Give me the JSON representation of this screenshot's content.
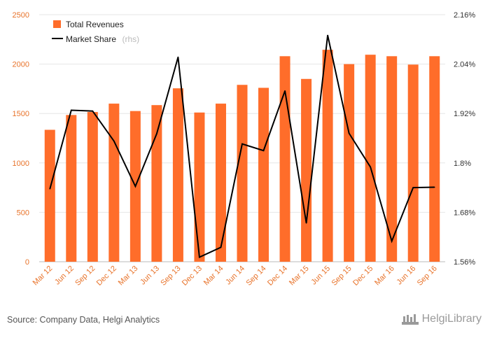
{
  "chart_data": {
    "type": "bar",
    "categories": [
      "Mar 12",
      "Jun 12",
      "Sep 12",
      "Dec 12",
      "Mar 13",
      "Jun 13",
      "Sep 13",
      "Dec 13",
      "Mar 14",
      "Jun 14",
      "Sep 14",
      "Dec 14",
      "Mar 15",
      "Jun 15",
      "Sep 15",
      "Dec 15",
      "Mar 16",
      "Jun 16",
      "Sep 16"
    ],
    "series": [
      {
        "name": "Total Revenues",
        "type": "bar",
        "axis": "left",
        "values": [
          1335,
          1485,
          1515,
          1600,
          1525,
          1585,
          1755,
          1510,
          1600,
          1790,
          1760,
          2080,
          1850,
          2145,
          2000,
          2095,
          2080,
          1995,
          2080
        ]
      },
      {
        "name": "Market Share",
        "name_note": "(rhs)",
        "type": "line",
        "axis": "right",
        "values": [
          1.737,
          1.928,
          1.926,
          1.853,
          1.743,
          1.871,
          2.057,
          1.571,
          1.595,
          1.846,
          1.83,
          1.975,
          1.654,
          2.11,
          1.872,
          1.79,
          1.61,
          1.74,
          1.741
        ]
      }
    ],
    "y_left": {
      "min": 0,
      "max": 2500,
      "ticks": [
        0,
        500,
        1000,
        1500,
        2000,
        2500
      ]
    },
    "y_right": {
      "min": 1.56,
      "max": 2.16,
      "ticks": [
        "1.56%",
        "1.68%",
        "1.8%",
        "1.92%",
        "2.04%",
        "2.16%"
      ]
    },
    "grid": true,
    "legend_position": "top-left",
    "colors": {
      "bar": "#ff6d2a",
      "line": "#000000",
      "grid": "#e6e6e6",
      "axis_text": "#e8732a"
    }
  },
  "source_text": "Source: Company Data, Helgi Analytics",
  "brand_text": "HelgiLibrary"
}
